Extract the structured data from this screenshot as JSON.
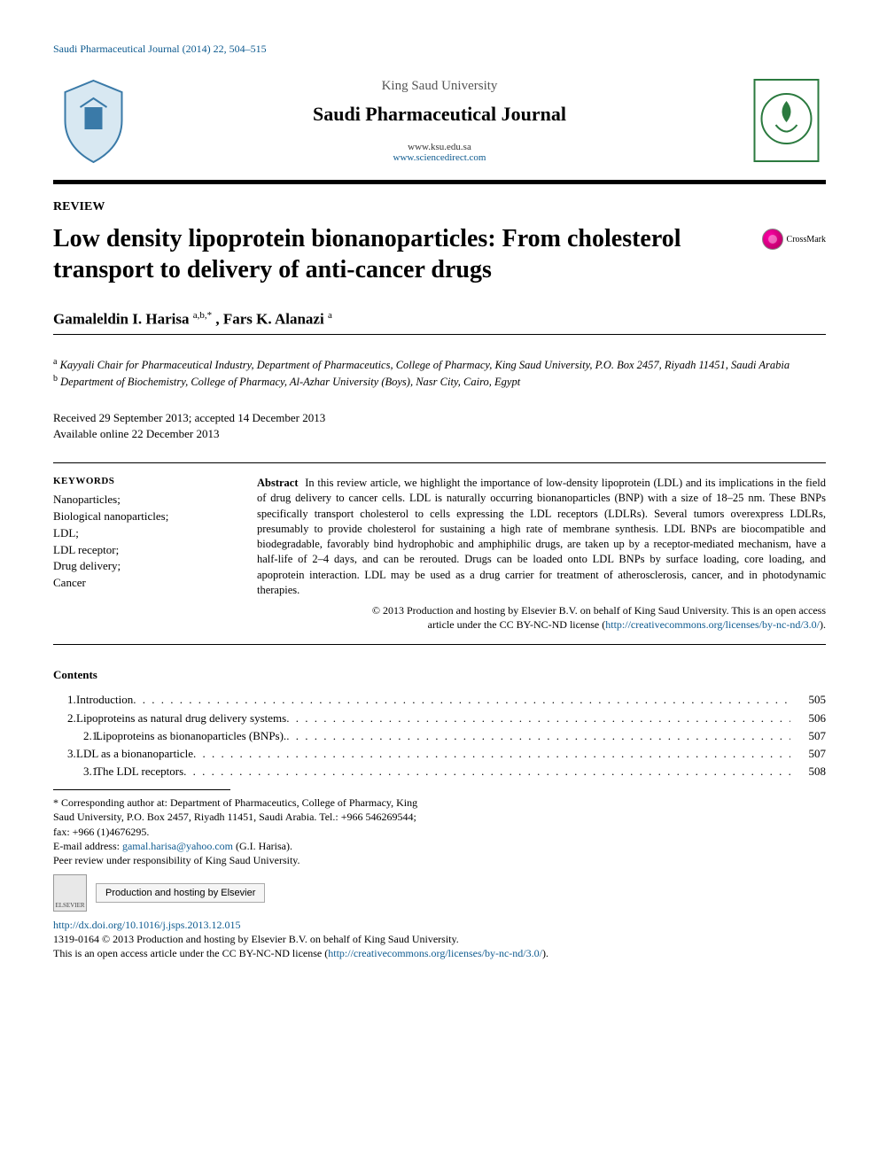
{
  "journal_ref": "Saudi Pharmaceutical Journal (2014) 22, 504–515",
  "header": {
    "university": "King Saud University",
    "journal_name": "Saudi Pharmaceutical Journal",
    "url1": "www.ksu.edu.sa",
    "url2": "www.sciencedirect.com"
  },
  "article_type": "REVIEW",
  "title": "Low density lipoprotein bionanoparticles: From cholesterol transport to delivery of anti-cancer drugs",
  "crossmark_label": "CrossMark",
  "authors_html": "Gamaleldin I. Harisa",
  "author1_aff": "a,b,*",
  "author2": ", Fars K. Alanazi",
  "author2_aff": "a",
  "affiliations": {
    "a": "Kayyali Chair for Pharmaceutical Industry, Department of Pharmaceutics, College of Pharmacy, King Saud University, P.O. Box 2457, Riyadh 11451, Saudi Arabia",
    "b": "Department of Biochemistry, College of Pharmacy, Al-Azhar University (Boys), Nasr City, Cairo, Egypt"
  },
  "dates": {
    "received_accepted": "Received 29 September 2013; accepted 14 December 2013",
    "online": "Available online 22 December 2013"
  },
  "keywords_head": "KEYWORDS",
  "keywords": "Nanoparticles;\nBiological nanoparticles;\nLDL;\nLDL receptor;\nDrug delivery;\nCancer",
  "abstract_label": "Abstract",
  "abstract": "In this review article, we highlight the importance of low-density lipoprotein (LDL) and its implications in the field of drug delivery to cancer cells. LDL is naturally occurring bionanoparticles (BNP) with a size of 18–25 nm. These BNPs specifically transport cholesterol to cells expressing the LDL receptors (LDLRs). Several tumors overexpress LDLRs, presumably to provide cholesterol for sustaining a high rate of membrane synthesis. LDL BNPs are biocompatible and biodegradable, favorably bind hydrophobic and amphiphilic drugs, are taken up by a receptor-mediated mechanism, have a half-life of 2–4 days, and can be rerouted. Drugs can be loaded onto LDL BNPs by surface loading, core loading, and apoprotein interaction. LDL may be used as a drug carrier for treatment of atherosclerosis, cancer, and in photodynamic therapies.",
  "copyright_line1": "© 2013 Production and hosting by Elsevier B.V. on behalf of King Saud University. This is an open access",
  "copyright_line2": "article under the CC BY-NC-ND license (",
  "cc_link": "http://creativecommons.org/licenses/by-nc-nd/3.0/",
  "copyright_line3": ").",
  "contents_head": "Contents",
  "toc": [
    {
      "num": "1.",
      "label": "Introduction",
      "page": "505",
      "sub": false
    },
    {
      "num": "2.",
      "label": "Lipoproteins as natural drug delivery systems",
      "page": "506",
      "sub": false
    },
    {
      "num": "2.1.",
      "label": "Lipoproteins as bionanoparticles (BNPs).",
      "page": "507",
      "sub": true
    },
    {
      "num": "3.",
      "label": "LDL as a bionanoparticle",
      "page": "507",
      "sub": false
    },
    {
      "num": "3.1.",
      "label": "The LDL receptors",
      "page": "508",
      "sub": true
    }
  ],
  "footnotes": {
    "corresponding": "* Corresponding author at: Department of Pharmaceutics, College of Pharmacy, King Saud University, P.O. Box 2457, Riyadh 11451, Saudi Arabia. Tel.: +966 546269544; fax: +966 (1)4676295.",
    "email_label": "E-mail address: ",
    "email": "gamal.harisa@yahoo.com",
    "email_suffix": " (G.I. Harisa).",
    "peer_review": "Peer review under responsibility of King Saud University."
  },
  "elsevier_label": "ELSEVIER",
  "prod_host": "Production and hosting by Elsevier",
  "doi": "http://dx.doi.org/10.1016/j.jsps.2013.12.015",
  "issn_line": "1319-0164 © 2013 Production and hosting by Elsevier B.V. on behalf of King Saud University.",
  "oa_line_prefix": "This is an open access article under the CC BY-NC-ND license (",
  "oa_link": "http://creativecommons.org/licenses/by-nc-nd/3.0/",
  "oa_line_suffix": ").",
  "colors": {
    "link": "#0d5a8f",
    "text": "#000000",
    "bg": "#ffffff"
  }
}
